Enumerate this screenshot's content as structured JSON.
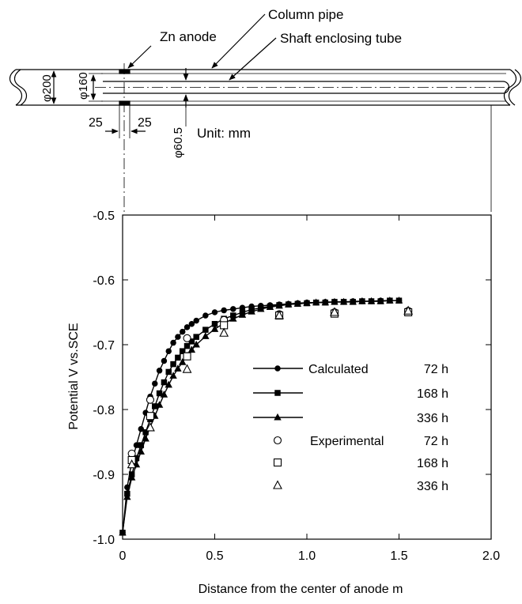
{
  "diagram": {
    "labels": {
      "column_pipe": "Column pipe",
      "zn_anode": "Zn anode",
      "shaft_tube": "Shaft enclosing tube",
      "unit": "Unit: mm",
      "dim_200": "φ200",
      "dim_160": "φ160",
      "dim_605": "φ60.5",
      "dim_25_left": "25",
      "dim_25_right": "25"
    }
  },
  "chart_data": {
    "type": "line",
    "xlabel": "Distance from the center of anode    m",
    "ylabel": "Potential    V vs.SCE",
    "xlim": [
      0,
      2.0
    ],
    "ylim": [
      -1.0,
      -0.5
    ],
    "x_ticks": [
      0,
      0.5,
      1.0,
      1.5,
      2.0
    ],
    "x_tick_labels": [
      "0",
      "0.5",
      "1.0",
      "1.5",
      "2.0"
    ],
    "y_ticks": [
      -0.5,
      -0.6,
      -0.7,
      -0.8,
      -0.9,
      -1.0
    ],
    "y_tick_labels": [
      "-0.5",
      "-0.6",
      "-0.7",
      "-0.8",
      "-0.9",
      "-1.0"
    ],
    "grid": false,
    "legend_position": "lower-right",
    "legend": {
      "group_calculated": "Calculated",
      "group_experimental": "Experimental",
      "durations": [
        "72 h",
        "168 h",
        "336 h"
      ]
    },
    "series": [
      {
        "kind": "calculated",
        "duration": "72 h",
        "marker": "filled-circle",
        "line": true,
        "x": [
          0.0,
          0.025,
          0.05,
          0.075,
          0.1,
          0.125,
          0.15,
          0.175,
          0.2,
          0.225,
          0.25,
          0.275,
          0.3,
          0.325,
          0.35,
          0.375,
          0.4,
          0.45,
          0.5,
          0.55,
          0.6,
          0.65,
          0.7,
          0.75,
          0.8,
          0.85,
          0.9,
          0.95,
          1.0,
          1.05,
          1.1,
          1.15,
          1.2,
          1.25,
          1.3,
          1.35,
          1.4,
          1.45,
          1.5
        ],
        "y": [
          -0.99,
          -0.92,
          -0.88,
          -0.855,
          -0.83,
          -0.805,
          -0.78,
          -0.76,
          -0.74,
          -0.725,
          -0.71,
          -0.697,
          -0.688,
          -0.68,
          -0.673,
          -0.668,
          -0.663,
          -0.655,
          -0.65,
          -0.647,
          -0.645,
          -0.643,
          -0.641,
          -0.64,
          -0.639,
          -0.638,
          -0.637,
          -0.636,
          -0.635,
          -0.635,
          -0.634,
          -0.634,
          -0.634,
          -0.633,
          -0.633,
          -0.633,
          -0.632,
          -0.632,
          -0.632
        ]
      },
      {
        "kind": "calculated",
        "duration": "168 h",
        "marker": "filled-square",
        "line": true,
        "x": [
          0.0,
          0.025,
          0.05,
          0.075,
          0.1,
          0.125,
          0.15,
          0.175,
          0.2,
          0.225,
          0.25,
          0.275,
          0.3,
          0.325,
          0.35,
          0.375,
          0.4,
          0.45,
          0.5,
          0.55,
          0.6,
          0.65,
          0.7,
          0.75,
          0.8,
          0.85,
          0.9,
          0.95,
          1.0,
          1.05,
          1.1,
          1.15,
          1.2,
          1.25,
          1.3,
          1.35,
          1.4,
          1.45,
          1.5
        ],
        "y": [
          -0.99,
          -0.93,
          -0.9,
          -0.875,
          -0.855,
          -0.835,
          -0.815,
          -0.795,
          -0.775,
          -0.758,
          -0.742,
          -0.73,
          -0.72,
          -0.71,
          -0.702,
          -0.695,
          -0.688,
          -0.677,
          -0.668,
          -0.66,
          -0.655,
          -0.65,
          -0.646,
          -0.643,
          -0.641,
          -0.639,
          -0.638,
          -0.637,
          -0.636,
          -0.635,
          -0.635,
          -0.634,
          -0.634,
          -0.634,
          -0.633,
          -0.633,
          -0.633,
          -0.632,
          -0.632
        ]
      },
      {
        "kind": "calculated",
        "duration": "336 h",
        "marker": "filled-triangle",
        "line": true,
        "x": [
          0.0,
          0.025,
          0.05,
          0.075,
          0.1,
          0.125,
          0.15,
          0.175,
          0.2,
          0.225,
          0.25,
          0.275,
          0.3,
          0.325,
          0.35,
          0.375,
          0.4,
          0.45,
          0.5,
          0.55,
          0.6,
          0.65,
          0.7,
          0.75,
          0.8,
          0.85,
          0.9,
          0.95,
          1.0,
          1.05,
          1.1,
          1.15,
          1.2,
          1.25,
          1.3,
          1.35,
          1.4,
          1.45,
          1.5
        ],
        "y": [
          -0.99,
          -0.935,
          -0.905,
          -0.885,
          -0.865,
          -0.845,
          -0.827,
          -0.81,
          -0.793,
          -0.777,
          -0.762,
          -0.748,
          -0.737,
          -0.727,
          -0.717,
          -0.708,
          -0.7,
          -0.687,
          -0.676,
          -0.667,
          -0.66,
          -0.654,
          -0.649,
          -0.645,
          -0.642,
          -0.64,
          -0.638,
          -0.637,
          -0.636,
          -0.635,
          -0.635,
          -0.634,
          -0.634,
          -0.634,
          -0.633,
          -0.633,
          -0.633,
          -0.632,
          -0.632
        ]
      },
      {
        "kind": "experimental",
        "duration": "72 h",
        "marker": "open-circle",
        "line": false,
        "x": [
          0.05,
          0.15,
          0.35,
          0.55,
          0.85,
          1.15,
          1.55
        ],
        "y": [
          -0.868,
          -0.785,
          -0.69,
          -0.662,
          -0.653,
          -0.65,
          -0.648
        ]
      },
      {
        "kind": "experimental",
        "duration": "168 h",
        "marker": "open-square",
        "line": false,
        "x": [
          0.05,
          0.15,
          0.35,
          0.55,
          0.85,
          1.15,
          1.55
        ],
        "y": [
          -0.878,
          -0.81,
          -0.718,
          -0.67,
          -0.655,
          -0.652,
          -0.65
        ]
      },
      {
        "kind": "experimental",
        "duration": "336 h",
        "marker": "open-triangle",
        "line": false,
        "x": [
          0.05,
          0.15,
          0.35,
          0.55,
          0.85,
          1.15,
          1.55
        ],
        "y": [
          -0.885,
          -0.828,
          -0.738,
          -0.682,
          -0.655,
          -0.65,
          -0.648
        ]
      }
    ]
  }
}
